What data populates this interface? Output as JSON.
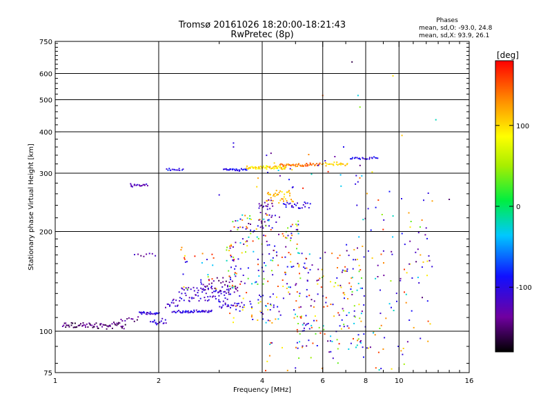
{
  "chart_data": {
    "type": "scatter",
    "title": "Tromsø 20161026 18:20:00-18:21:43",
    "subtitle": "RwPretec (8p)",
    "stats": {
      "heading": "Phases",
      "line_o": "mean, sd,O: -93.0, 24.8",
      "line_x": "mean, sd,X:  93.9, 26.1"
    },
    "xlabel": "Frequency [MHz]",
    "ylabel": "Stationary phase Virtual Height [km]",
    "x_scale": "log",
    "y_scale": "log",
    "xlim": [
      1,
      16
    ],
    "ylim": [
      75,
      750
    ],
    "x_ticks": [
      1,
      2,
      4,
      6,
      8,
      10,
      16
    ],
    "x_tick_labels": [
      "1",
      "2",
      "4",
      "6",
      "8",
      "10",
      "16"
    ],
    "y_ticks": [
      75,
      100,
      200,
      300,
      400,
      500,
      600,
      750
    ],
    "y_tick_labels": [
      "75",
      "100",
      "200",
      "300",
      "400",
      "500",
      "600",
      "750"
    ],
    "grid": true,
    "colorbar": {
      "label": "[deg]",
      "range": [
        -180,
        180
      ],
      "ticks": [
        100,
        0,
        -100
      ],
      "tick_labels": [
        "100",
        "0",
        "-100"
      ]
    },
    "traces": [
      {
        "x0": 1.05,
        "x1": 1.6,
        "h0": 102,
        "h1": 106,
        "phase": -150,
        "count": 70
      },
      {
        "x0": 1.55,
        "x1": 1.75,
        "h0": 107,
        "h1": 110,
        "phase": -140,
        "count": 10
      },
      {
        "x0": 1.75,
        "x1": 2.0,
        "h0": 113,
        "h1": 114,
        "phase": -105,
        "count": 26
      },
      {
        "x0": 1.9,
        "x1": 2.1,
        "h0": 105,
        "h1": 109,
        "phase": -110,
        "count": 16
      },
      {
        "x0": 2.2,
        "x1": 2.85,
        "h0": 114,
        "h1": 115,
        "phase": -105,
        "count": 45
      },
      {
        "x0": 2.1,
        "x1": 2.3,
        "h0": 118,
        "h1": 126,
        "phase": -115,
        "count": 14
      },
      {
        "x0": 2.3,
        "x1": 3.2,
        "h0": 123,
        "h1": 137,
        "phase": -110,
        "count": 70
      },
      {
        "x0": 2.7,
        "x1": 3.4,
        "h0": 130,
        "h1": 145,
        "phase": -140,
        "count": 34
      },
      {
        "x0": 3.0,
        "x1": 3.5,
        "h0": 118,
        "h1": 122,
        "phase": -110,
        "count": 22
      },
      {
        "x0": 1.65,
        "x1": 1.85,
        "h0": 275,
        "h1": 278,
        "phase": -120,
        "count": 18
      },
      {
        "x0": 2.1,
        "x1": 2.35,
        "h0": 307,
        "h1": 308,
        "phase": -95,
        "count": 14
      },
      {
        "x0": 3.1,
        "x1": 3.6,
        "h0": 306,
        "h1": 308,
        "phase": -95,
        "count": 26
      },
      {
        "x0": 3.6,
        "x1": 4.7,
        "h0": 310,
        "h1": 314,
        "phase": 100,
        "count": 55
      },
      {
        "x0": 4.5,
        "x1": 5.9,
        "h0": 315,
        "h1": 320,
        "phase": 140,
        "count": 45
      },
      {
        "x0": 6.0,
        "x1": 7.1,
        "h0": 318,
        "h1": 322,
        "phase": 105,
        "count": 24
      },
      {
        "x0": 7.2,
        "x1": 8.7,
        "h0": 332,
        "h1": 334,
        "phase": -95,
        "count": 22
      },
      {
        "x0": 4.1,
        "x1": 4.9,
        "h0": 245,
        "h1": 265,
        "phase": 110,
        "count": 40
      },
      {
        "x0": 4.6,
        "x1": 5.5,
        "h0": 235,
        "h1": 245,
        "phase": -100,
        "count": 24
      },
      {
        "x0": 3.9,
        "x1": 4.3,
        "h0": 200,
        "h1": 250,
        "phase": -130,
        "count": 30
      },
      {
        "x0": 1.7,
        "x1": 1.95,
        "h0": 168,
        "h1": 171,
        "phase": -130,
        "count": 8
      }
    ],
    "scatter_regions": [
      {
        "x0": 2.3,
        "x1": 3.4,
        "h0": 130,
        "h1": 185,
        "count": 40
      },
      {
        "x0": 3.2,
        "x1": 5.2,
        "h0": 105,
        "h1": 225,
        "count": 230
      },
      {
        "x0": 5.0,
        "x1": 8.0,
        "h0": 90,
        "h1": 175,
        "count": 150
      },
      {
        "x0": 7.0,
        "x1": 12.5,
        "h0": 88,
        "h1": 265,
        "count": 110
      },
      {
        "x0": 4.0,
        "x1": 11.0,
        "h0": 76,
        "h1": 95,
        "count": 40
      },
      {
        "x0": 3.8,
        "x1": 8.5,
        "h0": 270,
        "h1": 345,
        "count": 30
      }
    ],
    "isolated_points": [
      {
        "x": 7.3,
        "h": 650,
        "phase": -160
      },
      {
        "x": 7.6,
        "h": 515,
        "phase": -30
      },
      {
        "x": 7.7,
        "h": 475,
        "phase": 40
      },
      {
        "x": 6.0,
        "h": 515,
        "phase": 150
      },
      {
        "x": 9.6,
        "h": 590,
        "phase": 100
      },
      {
        "x": 10.2,
        "h": 390,
        "phase": 110
      },
      {
        "x": 12.8,
        "h": 435,
        "phase": -20
      },
      {
        "x": 3.3,
        "h": 370,
        "phase": -100
      },
      {
        "x": 3.3,
        "h": 360,
        "phase": -110
      },
      {
        "x": 3.0,
        "h": 258,
        "phase": -105
      },
      {
        "x": 6.9,
        "h": 360,
        "phase": -95
      },
      {
        "x": 14.0,
        "h": 250,
        "phase": -150
      },
      {
        "x": 12.0,
        "h": 205,
        "phase": -120
      }
    ]
  }
}
